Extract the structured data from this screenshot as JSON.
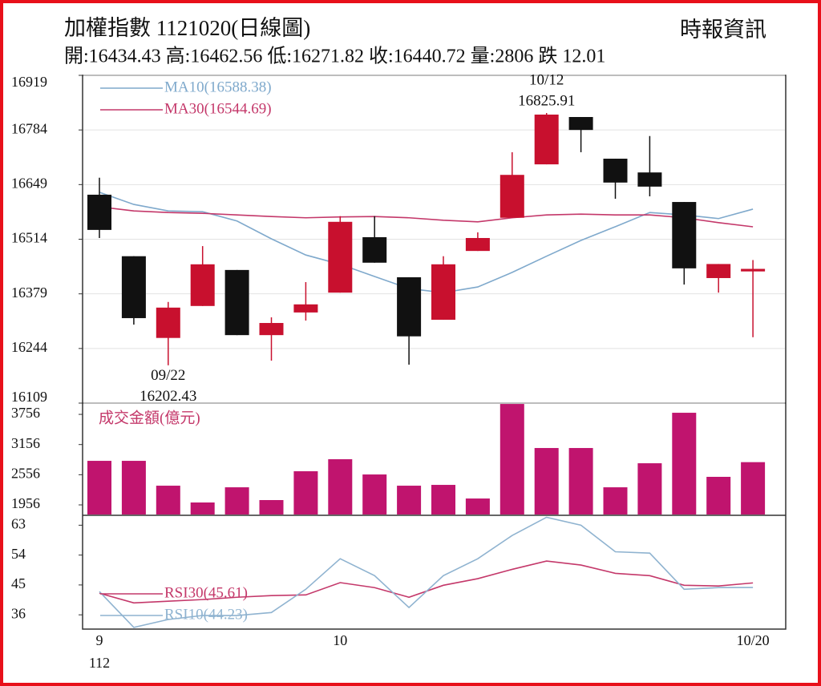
{
  "header": {
    "title": "加權指數 1121020(日線圖)",
    "source": "時報資訊",
    "info": "開:16434.43 高:16462.56 低:16271.82 收:16440.72 量:2806 跌 12.01"
  },
  "chart_data": [
    {
      "type": "candlestick",
      "open": [
        16624,
        16472,
        16270,
        16349,
        16438,
        16277,
        16333,
        16382,
        16519,
        16420,
        16315,
        16485,
        16567,
        16699,
        16816,
        16713,
        16679,
        16606,
        16418,
        16434.43
      ],
      "high": [
        16666,
        16472,
        16359,
        16497,
        16438,
        16321,
        16408,
        16571,
        16571,
        16420,
        16472,
        16531,
        16729,
        16825.91,
        16816,
        16713,
        16769,
        16606,
        16452.73,
        16462.56
      ],
      "low": [
        16517,
        16303,
        16202.43,
        16349,
        16277,
        16214,
        16313,
        16382,
        16456,
        16204,
        16315,
        16485,
        16567,
        16699,
        16729,
        16614,
        16620,
        16402,
        16382,
        16271.82
      ],
      "close": [
        16537,
        16319,
        16345,
        16452,
        16277,
        16307,
        16353,
        16557,
        16456,
        16274,
        16452,
        16517,
        16673,
        16822,
        16784,
        16654,
        16644,
        16442,
        16452.73,
        16440.72
      ],
      "up_color": "#c8102e",
      "down_color": "#111111",
      "series": [
        {
          "name": "MA10(16588.38)",
          "color": "#7fa9cc",
          "values": [
            16630,
            16600,
            16584,
            16582,
            16559,
            16515,
            16475,
            16452,
            16422,
            16392,
            16382,
            16396,
            16432,
            16472,
            16511,
            16545,
            16580,
            16574,
            16565,
            16588.38
          ]
        },
        {
          "name": "MA30(16544.69)",
          "color": "#c4386a",
          "values": [
            16594,
            16584,
            16580,
            16578,
            16574,
            16570,
            16567,
            16569,
            16570,
            16567,
            16561,
            16557,
            16567,
            16574,
            16576,
            16574,
            16574,
            16567,
            16555,
            16544.69
          ]
        }
      ],
      "annotations": [
        {
          "text": "10/12",
          "value": 16825.91,
          "at": "high"
        },
        {
          "text": "09/22",
          "value": 16202.43,
          "at": "low"
        }
      ],
      "ylim": [
        16109,
        16919
      ],
      "yticks": [
        16109,
        16244,
        16379,
        16514,
        16649,
        16784,
        16919
      ],
      "grid": true
    },
    {
      "type": "bar",
      "title": "成交金額(億元)",
      "color": "#c0146e",
      "title_color": "#c4386a",
      "values": [
        2832,
        2832,
        2338,
        2004,
        2306,
        2052,
        2625,
        2864,
        2561,
        2338,
        2354,
        2083,
        3963,
        3087,
        3087,
        2306,
        2784,
        3788,
        2514,
        2806
      ],
      "ylim": [
        1765,
        3980
      ],
      "yticks": [
        1956,
        2556,
        3156,
        3756
      ],
      "grid": false
    },
    {
      "type": "line",
      "categories": [
        "9",
        null,
        null,
        null,
        null,
        null,
        null,
        "10",
        null,
        null,
        null,
        null,
        null,
        null,
        null,
        null,
        null,
        null,
        null,
        "10/20"
      ],
      "x_year_label": "112",
      "series": [
        {
          "name": "RSI30(45.61)",
          "color": "#c4386a",
          "values": [
            42.5,
            39.6,
            40.1,
            40.6,
            41.3,
            41.8,
            42.0,
            45.7,
            44.2,
            41.3,
            44.9,
            46.9,
            49.7,
            52.2,
            51.0,
            48.5,
            47.8,
            44.9,
            44.7,
            45.61
          ]
        },
        {
          "name": "RSI10(44.23)",
          "color": "#8fb3d0",
          "values": [
            43.0,
            32.2,
            34.6,
            35.8,
            35.8,
            36.7,
            43.7,
            52.9,
            47.8,
            38.2,
            47.8,
            52.9,
            59.9,
            65.4,
            63.0,
            55.0,
            54.6,
            43.7,
            44.2,
            44.23
          ]
        }
      ],
      "ylim": [
        31.7,
        65.5
      ],
      "yticks": [
        36,
        45,
        54,
        63
      ],
      "grid": false
    }
  ]
}
